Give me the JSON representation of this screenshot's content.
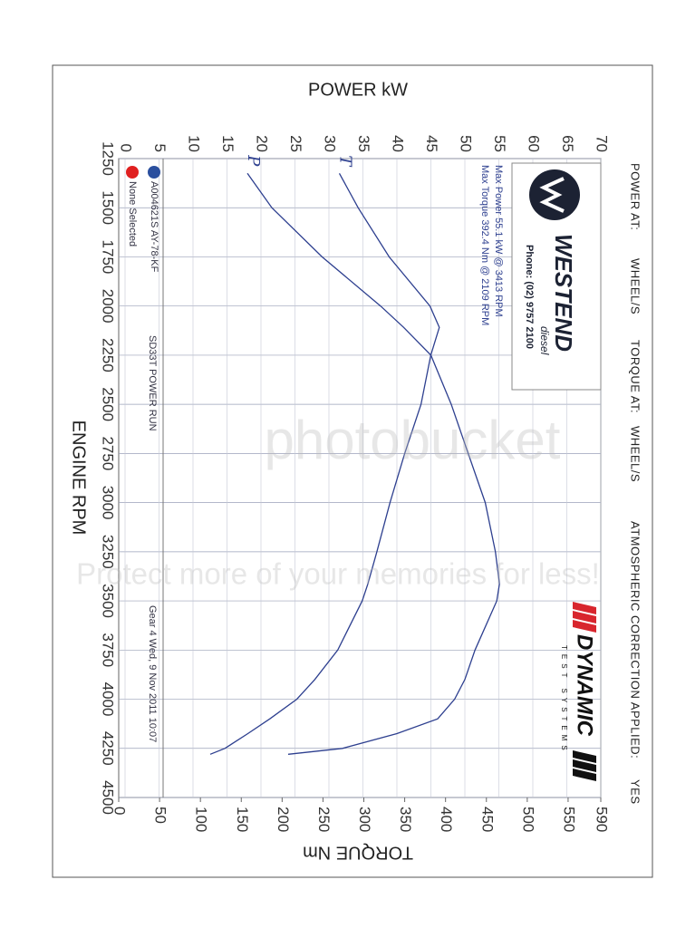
{
  "header": {
    "power_at_label": "POWER AT:",
    "power_at_value": "WHEEL/S",
    "torque_at_label": "TORQUE AT:",
    "torque_at_value": "WHEEL/S",
    "correction_label": "ATMOSPHERIC CORRECTION APPLIED:",
    "correction_value": "YES"
  },
  "logos": {
    "westend": "WESTEND",
    "westend_sub": "diesel",
    "phone": "Phone: (02) 9757 2100",
    "dynamic": "DYNAMIC",
    "dynamic_sub": "TEST SYSTEMS"
  },
  "watermark": {
    "brand": "photobucket",
    "slogan": "Protect more of your memories for less!"
  },
  "chart_data": {
    "type": "line",
    "y_label": "POWER kW",
    "y2_label": "TORQUE Nm",
    "x_label": "ENGINE RPM",
    "annotations": [
      "Max Power 55.1 kW @ 3413 RPM",
      "Max Torque 392.4 Nm @ 2109 RPM"
    ],
    "run_title": "SD33T POWER RUN",
    "run_info": "Gear 4 Wed, 9 Nov 2011 10:07",
    "legend": [
      {
        "label": "A004621S AY-78-KF",
        "color": "#2a4f9e"
      },
      {
        "label": "None Selected",
        "color": "#e02020"
      }
    ],
    "x": [
      1325,
      1500,
      1750,
      2000,
      2109,
      2250,
      2500,
      2750,
      3000,
      3250,
      3413,
      3500,
      3750,
      3900,
      4000,
      4100,
      4175,
      4250,
      4280
    ],
    "xlim": [
      1250,
      4500
    ],
    "xticks": [
      1250,
      1500,
      1750,
      2000,
      2250,
      2500,
      2750,
      3000,
      3250,
      3500,
      3750,
      4000,
      4250,
      4500
    ],
    "ylim": [
      0,
      70
    ],
    "yticks": [
      0,
      5,
      10,
      15,
      20,
      25,
      30,
      35,
      40,
      45,
      50,
      55,
      60,
      65,
      70
    ],
    "y2lim": [
      0,
      590
    ],
    "y2ticks": [
      0,
      50,
      100,
      150,
      200,
      250,
      300,
      350,
      400,
      450,
      500,
      550,
      590
    ],
    "grid": true,
    "series": [
      {
        "name": "P",
        "color": "#2d3f8f",
        "values": [
          18,
          21.6,
          29,
          37.6,
          41,
          45,
          48,
          50.5,
          53,
          54.5,
          55.1,
          54.7,
          51.5,
          50,
          48.5,
          46,
          40,
          32,
          24
        ]
      },
      {
        "name": "T",
        "color": "#2d3f8f",
        "axis": "y2",
        "values": [
          270,
          293,
          331,
          381,
          392.4,
          382,
          370,
          350,
          332,
          316,
          305,
          298,
          268,
          240,
          218,
          185,
          158,
          130,
          112
        ]
      }
    ]
  }
}
